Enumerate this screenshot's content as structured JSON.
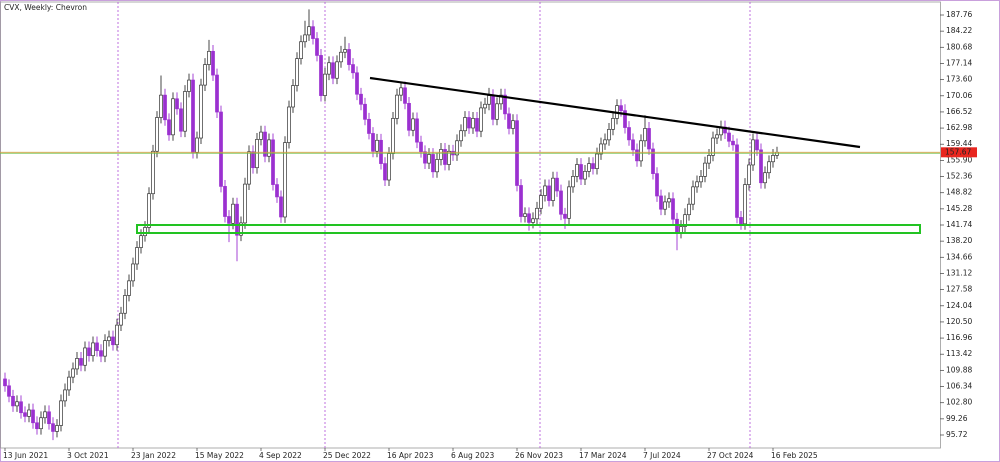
{
  "chart_data": {
    "type": "candlestick",
    "title": "CVX, Weekly:  Chevron",
    "categories": [
      "13 Jun 2021",
      null,
      null,
      null,
      null,
      null,
      null,
      null,
      null,
      null,
      null,
      null,
      null,
      null,
      null,
      null,
      "3 Oct 2021",
      null,
      null,
      null,
      null,
      null,
      null,
      null,
      null,
      null,
      null,
      null,
      null,
      null,
      null,
      null,
      "23 Jan 2022",
      null,
      null,
      null,
      null,
      null,
      null,
      null,
      null,
      null,
      null,
      null,
      null,
      null,
      null,
      null,
      "15 May 2022",
      null,
      null,
      null,
      null,
      null,
      null,
      null,
      null,
      null,
      null,
      null,
      null,
      null,
      null,
      null,
      "4 Sep 2022",
      null,
      null,
      null,
      null,
      null,
      null,
      null,
      null,
      null,
      null,
      null,
      null,
      null,
      null,
      null,
      "25 Dec 2022",
      null,
      null,
      null,
      null,
      null,
      null,
      null,
      null,
      null,
      null,
      null,
      null,
      null,
      null,
      null,
      "16 Apr 2023",
      null,
      null,
      null,
      null,
      null,
      null,
      null,
      null,
      null,
      null,
      null,
      null,
      null,
      null,
      null,
      "6 Aug 2023",
      null,
      null,
      null,
      null,
      null,
      null,
      null,
      null,
      null,
      null,
      null,
      null,
      null,
      null,
      null,
      "26 Nov 2023",
      null,
      null,
      null,
      null,
      null,
      null,
      null,
      null,
      null,
      null,
      null,
      null,
      null,
      null,
      null,
      "17 Mar 2024",
      null,
      null,
      null,
      null,
      null,
      null,
      null,
      null,
      null,
      null,
      null,
      null,
      null,
      null,
      null,
      "7 Jul 2024",
      null,
      null,
      null,
      null,
      null,
      null,
      null,
      null,
      null,
      null,
      null,
      null,
      null,
      null,
      null,
      "27 Oct 2024",
      null,
      null,
      null,
      null,
      null,
      null,
      null,
      null,
      null,
      null,
      null,
      null,
      null,
      null,
      null,
      "16 Feb 2025",
      null
    ],
    "open": [
      108.0,
      106.5,
      104.2,
      102.1,
      103.0,
      100.6,
      99.8,
      101.2,
      98.4,
      97.1,
      99.5,
      100.8,
      98.2,
      96.5,
      97.8,
      103.2,
      105.6,
      108.4,
      110.2,
      112.5,
      111.0,
      114.8,
      113.1,
      115.9,
      114.2,
      113.0,
      116.4,
      117.2,
      115.5,
      119.8,
      122.4,
      126.3,
      129.5,
      133.2,
      136.8,
      139.4,
      141.2,
      148.6,
      157.9,
      165.3,
      170.2,
      164.8,
      161.5,
      169.4,
      167.2,
      162.3,
      171.0,
      173.5,
      157.6,
      160.8,
      172.4,
      176.9,
      179.8,
      174.6,
      166.5,
      150.2,
      143.6,
      142.1,
      146.3,
      139.5,
      142.2,
      150.7,
      157.8,
      154.3,
      160.5,
      162.1,
      156.8,
      160.4,
      150.6,
      147.9,
      143.5,
      159.8,
      167.6,
      172.3,
      178.2,
      181.9,
      183.4,
      185.2,
      182.6,
      178.9,
      170.1,
      174.8,
      177.3,
      173.9,
      177.5,
      179.6,
      180.2,
      176.9,
      175.1,
      170.4,
      168.2,
      164.9,
      161.8,
      157.9,
      160.3,
      155.2,
      151.6,
      157.4,
      165.1,
      170.2,
      171.8,
      168.4,
      162.5,
      165.0,
      159.9,
      157.8,
      155.3,
      157.2,
      153.4,
      156.1,
      158.3,
      155.0,
      157.9,
      157.1,
      160.2,
      162.4,
      165.3,
      163.0,
      165.1,
      162.3,
      167.4,
      168.2,
      170.1,
      164.9,
      168.3,
      170.2,
      166.1,
      162.9,
      164.6,
      150.4,
      143.6,
      144.2,
      142.3,
      143.1,
      145.4,
      148.2,
      150.3,
      147.1,
      152.0,
      149.2,
      144.1,
      143.2,
      150.1,
      152.4,
      155.0,
      151.8,
      153.5,
      155.2,
      154.1,
      157.3,
      159.5,
      160.4,
      162.7,
      165.1,
      167.9,
      166.8,
      163.1,
      160.4,
      158.2,
      155.8,
      160.2,
      162.9,
      158.4,
      153.0,
      148.1,
      145.2,
      146.8,
      147.5,
      143.0,
      140.1,
      141.4,
      144.0,
      146.3,
      150.1,
      151.2,
      152.4,
      155.3,
      157.0,
      160.8,
      161.5,
      163.2,
      161.9,
      160.1,
      159.3,
      143.4,
      142.0,
      150.6,
      154.9,
      160.4,
      158.2,
      151.0,
      153.2,
      155.6,
      157.0
    ],
    "high": [
      109.4,
      107.9,
      105.6,
      104.4,
      104.4,
      102.0,
      102.6,
      102.6,
      99.8,
      100.9,
      102.2,
      102.2,
      99.6,
      99.2,
      104.6,
      107.0,
      109.8,
      111.6,
      113.9,
      113.9,
      116.2,
      116.2,
      117.3,
      117.3,
      115.6,
      117.8,
      118.6,
      118.6,
      121.2,
      123.8,
      127.7,
      130.9,
      134.6,
      138.2,
      140.8,
      142.6,
      150.0,
      159.3,
      166.7,
      174.5,
      171.6,
      166.2,
      170.8,
      170.8,
      168.6,
      172.4,
      174.9,
      174.9,
      162.2,
      173.8,
      178.3,
      182.3,
      181.2,
      176.0,
      167.9,
      151.6,
      145.0,
      147.7,
      147.7,
      143.6,
      152.1,
      159.2,
      159.2,
      161.9,
      163.5,
      163.5,
      161.8,
      161.8,
      152.0,
      149.3,
      161.2,
      169.0,
      173.7,
      179.6,
      183.3,
      186.5,
      189.0,
      186.6,
      184.0,
      180.3,
      176.2,
      178.7,
      178.7,
      178.9,
      181.0,
      183.0,
      181.6,
      178.3,
      176.5,
      171.8,
      169.6,
      166.3,
      163.2,
      161.7,
      161.7,
      156.6,
      158.8,
      166.5,
      171.6,
      173.2,
      173.2,
      169.8,
      166.4,
      166.4,
      161.3,
      159.2,
      158.6,
      158.6,
      157.5,
      159.7,
      159.7,
      159.3,
      159.3,
      161.6,
      163.8,
      166.7,
      166.7,
      166.5,
      166.5,
      168.8,
      169.6,
      171.8,
      171.5,
      169.7,
      171.6,
      171.6,
      167.5,
      166.0,
      166.0,
      151.8,
      145.6,
      145.6,
      144.5,
      146.8,
      149.6,
      151.7,
      151.7,
      153.4,
      153.4,
      150.6,
      145.5,
      151.5,
      153.8,
      156.4,
      156.4,
      154.9,
      156.6,
      156.6,
      158.7,
      160.9,
      161.8,
      164.1,
      166.5,
      169.3,
      169.3,
      168.2,
      164.5,
      161.8,
      159.6,
      161.6,
      165.8,
      164.3,
      159.8,
      154.4,
      149.5,
      148.2,
      148.9,
      148.9,
      144.4,
      142.8,
      145.4,
      147.7,
      151.5,
      152.6,
      153.8,
      156.7,
      158.4,
      162.2,
      162.9,
      164.6,
      164.6,
      163.3,
      161.5,
      160.7,
      144.8,
      152.0,
      156.3,
      161.8,
      161.8,
      159.6,
      154.6,
      157.0,
      158.4,
      158.9
    ],
    "low": [
      105.2,
      102.9,
      100.8,
      100.8,
      99.3,
      98.5,
      98.5,
      97.1,
      95.8,
      95.8,
      98.2,
      96.9,
      94.6,
      95.2,
      96.5,
      101.9,
      104.3,
      107.1,
      108.9,
      109.7,
      109.7,
      111.8,
      111.8,
      112.9,
      111.7,
      111.7,
      115.1,
      114.2,
      114.2,
      118.5,
      121.1,
      125.0,
      128.2,
      131.9,
      135.5,
      138.1,
      139.9,
      147.3,
      156.6,
      164.0,
      163.5,
      160.2,
      160.2,
      165.9,
      161.0,
      161.0,
      169.7,
      156.3,
      156.3,
      159.5,
      171.1,
      175.6,
      173.3,
      165.2,
      148.9,
      142.3,
      138.0,
      140.8,
      133.8,
      138.2,
      140.9,
      149.4,
      153.0,
      153.0,
      159.2,
      155.5,
      155.5,
      149.3,
      146.6,
      142.2,
      142.2,
      158.5,
      166.3,
      171.0,
      176.9,
      180.6,
      182.1,
      181.3,
      177.6,
      168.8,
      168.8,
      173.5,
      172.6,
      172.6,
      176.2,
      178.3,
      175.6,
      173.8,
      169.1,
      166.9,
      163.6,
      160.5,
      156.6,
      156.6,
      153.9,
      150.3,
      150.3,
      156.1,
      163.8,
      168.9,
      167.1,
      161.2,
      161.2,
      158.6,
      156.5,
      154.0,
      154.0,
      152.1,
      152.1,
      154.8,
      153.7,
      153.7,
      155.8,
      155.8,
      158.9,
      161.1,
      161.7,
      161.7,
      161.0,
      161.0,
      166.1,
      166.9,
      163.6,
      163.6,
      167.0,
      164.8,
      161.6,
      161.6,
      149.1,
      142.3,
      142.3,
      140.5,
      141.0,
      141.8,
      144.1,
      146.9,
      145.8,
      145.8,
      147.9,
      142.8,
      140.9,
      141.9,
      148.8,
      151.1,
      150.5,
      150.5,
      152.2,
      152.8,
      152.8,
      156.0,
      158.2,
      159.1,
      161.4,
      163.8,
      165.5,
      161.8,
      159.1,
      156.9,
      154.5,
      154.5,
      158.9,
      157.1,
      151.7,
      146.8,
      143.9,
      143.9,
      145.5,
      141.7,
      136.2,
      138.8,
      140.1,
      142.7,
      145.0,
      148.8,
      149.9,
      151.1,
      154.0,
      155.7,
      159.5,
      160.2,
      160.6,
      158.8,
      158.0,
      142.1,
      140.7,
      140.7,
      149.3,
      153.6,
      156.9,
      149.7,
      149.7,
      151.9,
      154.3,
      156.2
    ],
    "close": [
      106.5,
      104.2,
      102.1,
      103.0,
      100.6,
      99.8,
      101.2,
      98.4,
      97.1,
      99.5,
      100.8,
      98.2,
      96.5,
      97.8,
      103.2,
      105.6,
      108.4,
      110.2,
      112.5,
      111.0,
      114.8,
      113.1,
      115.9,
      114.2,
      113.0,
      116.4,
      117.2,
      115.5,
      119.8,
      122.4,
      126.3,
      129.5,
      133.2,
      136.8,
      139.4,
      141.2,
      148.6,
      157.9,
      165.3,
      170.2,
      164.8,
      161.5,
      169.4,
      167.2,
      162.3,
      171.0,
      173.5,
      157.6,
      160.8,
      172.4,
      176.9,
      179.8,
      174.6,
      166.5,
      150.2,
      143.6,
      142.1,
      146.3,
      139.5,
      142.2,
      150.7,
      157.8,
      154.3,
      160.5,
      162.1,
      156.8,
      160.4,
      150.6,
      147.9,
      143.5,
      159.8,
      167.6,
      172.3,
      178.2,
      181.9,
      183.4,
      185.2,
      182.6,
      178.9,
      170.1,
      174.8,
      177.3,
      173.9,
      177.5,
      179.6,
      180.2,
      176.9,
      175.1,
      170.4,
      168.2,
      164.9,
      161.8,
      157.9,
      160.3,
      155.2,
      151.6,
      157.4,
      165.1,
      170.2,
      171.8,
      168.4,
      162.5,
      165.0,
      159.9,
      157.8,
      155.3,
      157.2,
      153.4,
      156.1,
      158.3,
      155.0,
      157.9,
      157.1,
      160.2,
      162.4,
      165.3,
      163.0,
      165.1,
      162.3,
      167.4,
      168.2,
      170.1,
      164.9,
      168.3,
      170.2,
      166.1,
      162.9,
      164.6,
      150.4,
      143.6,
      144.2,
      142.3,
      143.1,
      145.4,
      148.2,
      150.3,
      147.1,
      152.0,
      149.2,
      144.1,
      143.2,
      150.1,
      152.4,
      155.0,
      151.8,
      153.5,
      155.2,
      154.1,
      157.3,
      159.5,
      160.4,
      162.7,
      165.1,
      167.9,
      166.8,
      163.1,
      160.4,
      158.2,
      155.8,
      160.2,
      162.9,
      158.4,
      153.0,
      148.1,
      145.2,
      146.8,
      147.5,
      143.0,
      140.1,
      141.4,
      144.0,
      146.3,
      150.1,
      151.2,
      152.4,
      155.3,
      157.0,
      160.8,
      161.5,
      163.2,
      161.9,
      160.1,
      159.3,
      143.4,
      142.0,
      150.6,
      154.9,
      160.4,
      158.2,
      151.0,
      153.2,
      155.6,
      157.0,
      157.67
    ],
    "up_color": "#ffffff",
    "down_color": "#9b30d0",
    "ylim": [
      92.87,
      190.61
    ],
    "yticks": [
      187.76,
      184.22,
      180.68,
      177.14,
      {
        "value": 173.6,
        "label": "173.60"
      },
      170.06,
      166.52,
      162.98,
      159.44,
      {
        "value": 155.9,
        "label": "155.90"
      },
      152.36,
      148.82,
      145.28,
      141.74,
      {
        "value": 138.2,
        "label": "138.20"
      },
      134.66,
      131.12,
      127.58,
      124.04,
      {
        "value": 120.5,
        "label": "120.50"
      },
      116.96,
      113.42,
      109.88,
      106.34,
      {
        "value": 102.8,
        "label": "102.80"
      },
      99.26,
      95.72
    ],
    "grid": false
  }
}
